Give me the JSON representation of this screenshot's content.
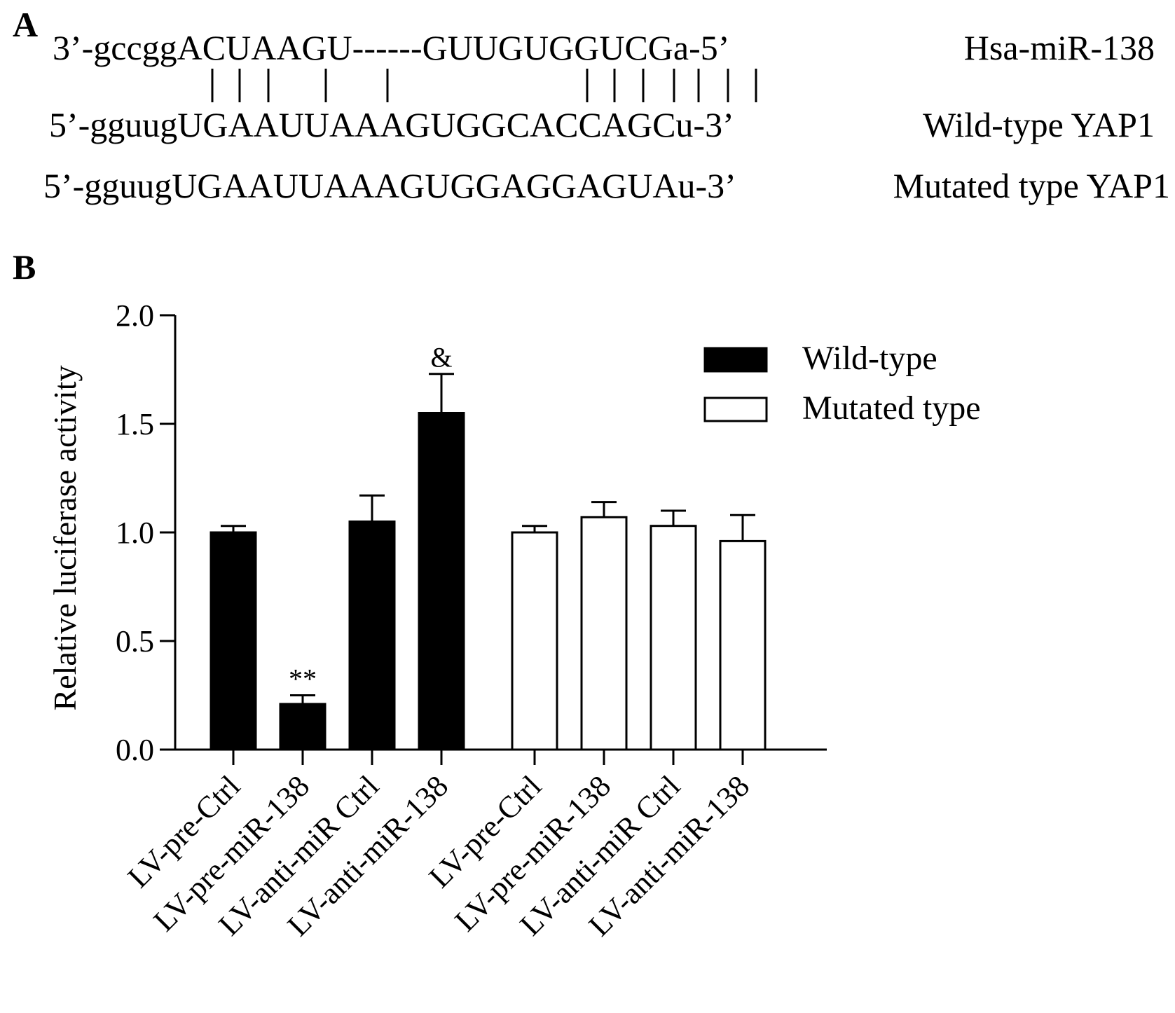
{
  "panel_a": {
    "label": "A",
    "rows": [
      {
        "sequence": "3’-gccggACUAAGU------GUUGUGGUCGa-5’",
        "name": "Hsa-miR-138"
      },
      {
        "sequence": "5’-gguugUGAAUUAAAGUGGCACCAGCu-3’",
        "name": "Wild-type YAP1"
      },
      {
        "sequence": "5’-gguugUGAAUUAAAGUGGAGGAGUAu-3’",
        "name": "Mutated type YAP1"
      }
    ]
  },
  "chart_data": {
    "type": "bar",
    "panel_label": "B",
    "ylabel": "Relative luciferase activity",
    "ylim": [
      0,
      2.0
    ],
    "yticks": [
      "0.0",
      "0.5",
      "1.0",
      "1.5",
      "2.0"
    ],
    "legend_position": "top-right",
    "categories": [
      "LV-pre-Ctrl",
      "LV-pre-miR-138",
      "LV-anti-miR Ctrl",
      "LV-anti-miR-138"
    ],
    "series": [
      {
        "name": "Wild-type",
        "fill": "#000000",
        "values": [
          1.0,
          0.21,
          1.05,
          1.55
        ],
        "errors": [
          0.03,
          0.04,
          0.12,
          0.18
        ],
        "annotations": [
          "",
          "**",
          "",
          "&"
        ]
      },
      {
        "name": "Mutated type",
        "fill": "#ffffff",
        "values": [
          1.0,
          1.07,
          1.03,
          0.96
        ],
        "errors": [
          0.03,
          0.07,
          0.07,
          0.12
        ],
        "annotations": [
          "",
          "",
          "",
          ""
        ]
      }
    ]
  }
}
